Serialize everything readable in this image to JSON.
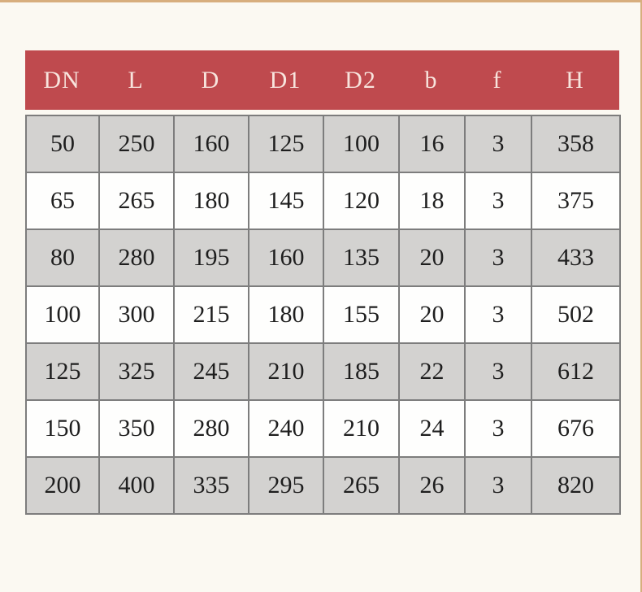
{
  "page": {
    "background_color": "#fbf9f2",
    "border_strip_color": "#d7ae7e"
  },
  "colors": {
    "header_bg": "#bf4a4e",
    "header_text": "#f8e4dd",
    "row_gray": "#d3d2d0",
    "row_white": "#fefefd",
    "border": "#7d7d7d",
    "cell_text": "#1e1e1e"
  },
  "chart_data": {
    "type": "table",
    "title": "",
    "columns": [
      "DN",
      "L",
      "D",
      "D1",
      "D2",
      "b",
      "f",
      "H"
    ],
    "rows": [
      [
        "50",
        "250",
        "160",
        "125",
        "100",
        "16",
        "3",
        "358"
      ],
      [
        "65",
        "265",
        "180",
        "145",
        "120",
        "18",
        "3",
        "375"
      ],
      [
        "80",
        "280",
        "195",
        "160",
        "135",
        "20",
        "3",
        "433"
      ],
      [
        "100",
        "300",
        "215",
        "180",
        "155",
        "20",
        "3",
        "502"
      ],
      [
        "125",
        "325",
        "245",
        "210",
        "185",
        "22",
        "3",
        "612"
      ],
      [
        "150",
        "350",
        "280",
        "240",
        "210",
        "24",
        "3",
        "676"
      ],
      [
        "200",
        "400",
        "335",
        "295",
        "265",
        "26",
        "3",
        "820"
      ]
    ],
    "layout_hints": {
      "header_background": "#bf4a4e",
      "alternating_rows": "odd rows gray, even rows white, starting gray",
      "grid": true
    }
  }
}
